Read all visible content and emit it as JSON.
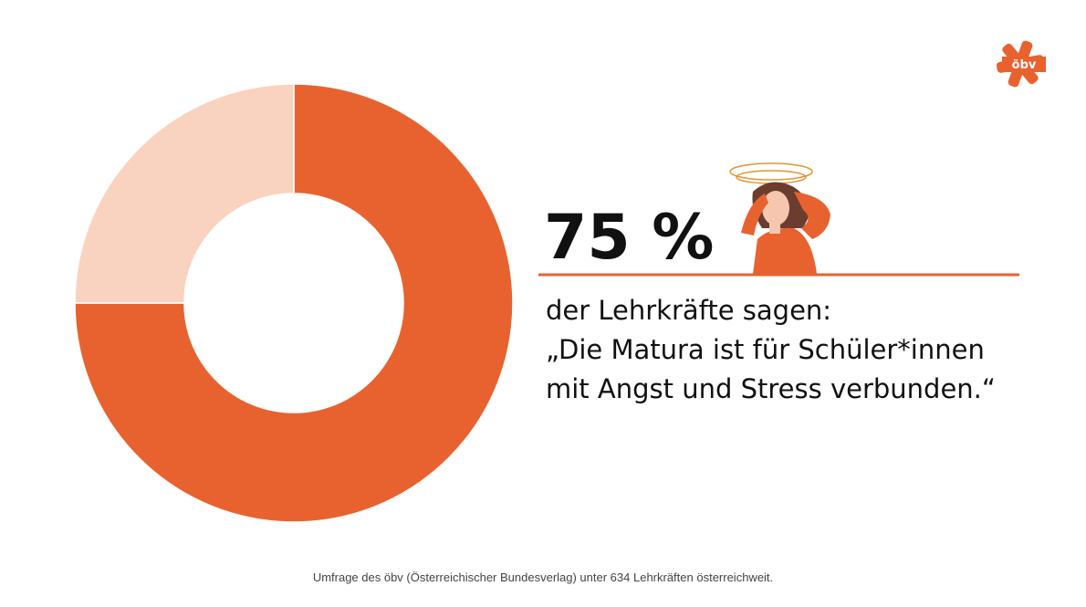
{
  "chart_data": {
    "type": "donut",
    "categories": [
      null,
      null
    ],
    "values": [
      75,
      25
    ],
    "value_labels": [
      "75 %",
      null
    ],
    "colors": [
      "#e8622f",
      "#f9d3bf"
    ],
    "annotations": [
      "der Lehrkräfte sagen:",
      "„Die Matura ist für Schüler*innen",
      "mit Angst und Stress verbunden.“"
    ],
    "source": "Umfrage des öbv (Österreichischer Bundesverlag) unter 634 Lehrkräften österreichweit."
  },
  "logo": "öbv"
}
